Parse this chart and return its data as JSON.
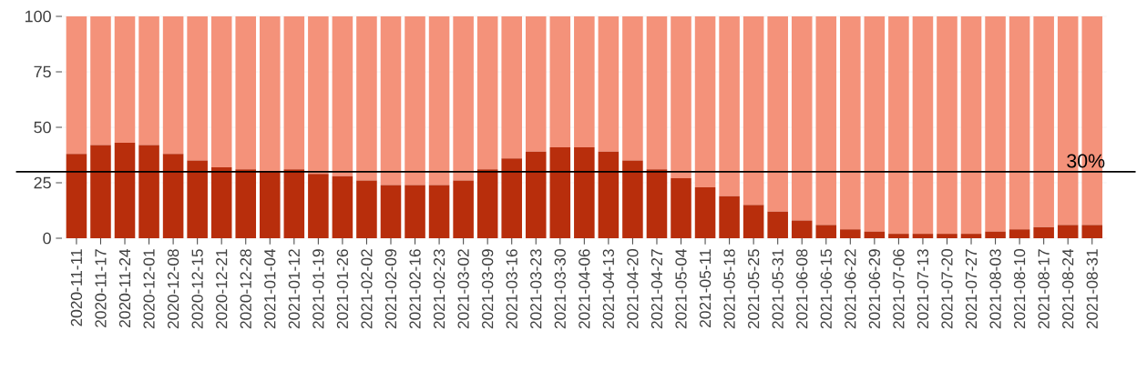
{
  "chart_data": {
    "type": "bar",
    "stacked": true,
    "categories": [
      "2020-11-11",
      "2020-11-17",
      "2020-11-24",
      "2020-12-01",
      "2020-12-08",
      "2020-12-15",
      "2020-12-21",
      "2020-12-28",
      "2021-01-04",
      "2021-01-12",
      "2021-01-19",
      "2021-01-26",
      "2021-02-02",
      "2021-02-09",
      "2021-02-16",
      "2021-02-23",
      "2021-03-02",
      "2021-03-09",
      "2021-03-16",
      "2021-03-23",
      "2021-03-30",
      "2021-04-06",
      "2021-04-13",
      "2021-04-20",
      "2021-04-27",
      "2021-05-04",
      "2021-05-11",
      "2021-05-18",
      "2021-05-25",
      "2021-05-31",
      "2021-06-08",
      "2021-06-15",
      "2021-06-22",
      "2021-06-29",
      "2021-07-06",
      "2021-07-13",
      "2021-07-20",
      "2021-07-27",
      "2021-08-03",
      "2021-08-10",
      "2021-08-17",
      "2021-08-24",
      "2021-08-31"
    ],
    "series": [
      {
        "color": "#b82e0c",
        "values": [
          38,
          42,
          43,
          42,
          38,
          35,
          32,
          31,
          30,
          31,
          29,
          28,
          26,
          24,
          24,
          24,
          26,
          31,
          36,
          39,
          41,
          41,
          39,
          35,
          31,
          27,
          23,
          19,
          15,
          12,
          8,
          6,
          4,
          3,
          2,
          2,
          2,
          2,
          3,
          4,
          5,
          6,
          6
        ]
      },
      {
        "color": "#f4927a",
        "values": [
          62,
          58,
          57,
          58,
          62,
          65,
          68,
          69,
          70,
          69,
          71,
          72,
          74,
          76,
          76,
          76,
          74,
          69,
          64,
          61,
          59,
          59,
          61,
          65,
          69,
          73,
          77,
          81,
          85,
          88,
          92,
          94,
          96,
          97,
          98,
          98,
          98,
          98,
          97,
          96,
          95,
          94,
          94
        ]
      }
    ],
    "ylim": [
      0,
      100
    ],
    "yticks": [
      0,
      25,
      50,
      75,
      100
    ],
    "grid": "y",
    "ref_lines": [
      {
        "axis": "y",
        "value": 30,
        "label": "30%",
        "color": "#000000"
      }
    ]
  }
}
